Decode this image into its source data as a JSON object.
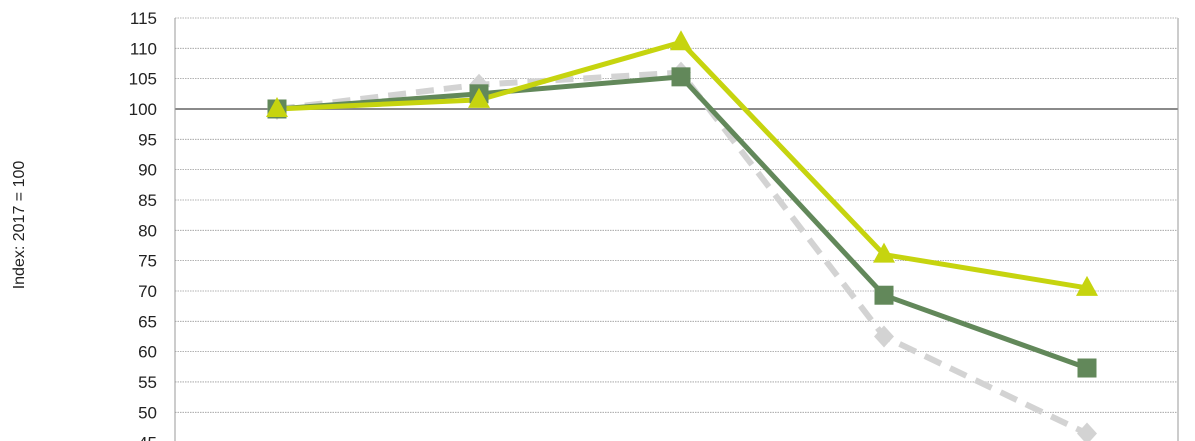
{
  "chart_data": {
    "type": "line",
    "ylabel": "Index: 2017 = 100",
    "ylim": [
      45,
      115
    ],
    "yticks": [
      45,
      50,
      55,
      60,
      65,
      70,
      75,
      80,
      85,
      90,
      95,
      100,
      105,
      110,
      115
    ],
    "ytick_labels": [
      "45",
      "50",
      "55",
      "60",
      "65",
      "70",
      "75",
      "80",
      "85",
      "90",
      "95",
      "100",
      "105",
      "110",
      "115"
    ],
    "x": [
      0,
      1,
      2,
      3,
      4
    ],
    "reference_line": 100,
    "grid": true,
    "series": [
      {
        "color": "#d3d3d3",
        "marker": "diamond",
        "dashed": true,
        "values": [
          100,
          104,
          106,
          62.5,
          46.5
        ]
      },
      {
        "color": "#62885a",
        "marker": "square",
        "dashed": false,
        "values": [
          100,
          102.5,
          105.3,
          69.3,
          57.3
        ]
      },
      {
        "color": "#c6d40f",
        "marker": "triangle",
        "dashed": false,
        "values": [
          100,
          101.5,
          111,
          76,
          70.5
        ]
      }
    ]
  }
}
